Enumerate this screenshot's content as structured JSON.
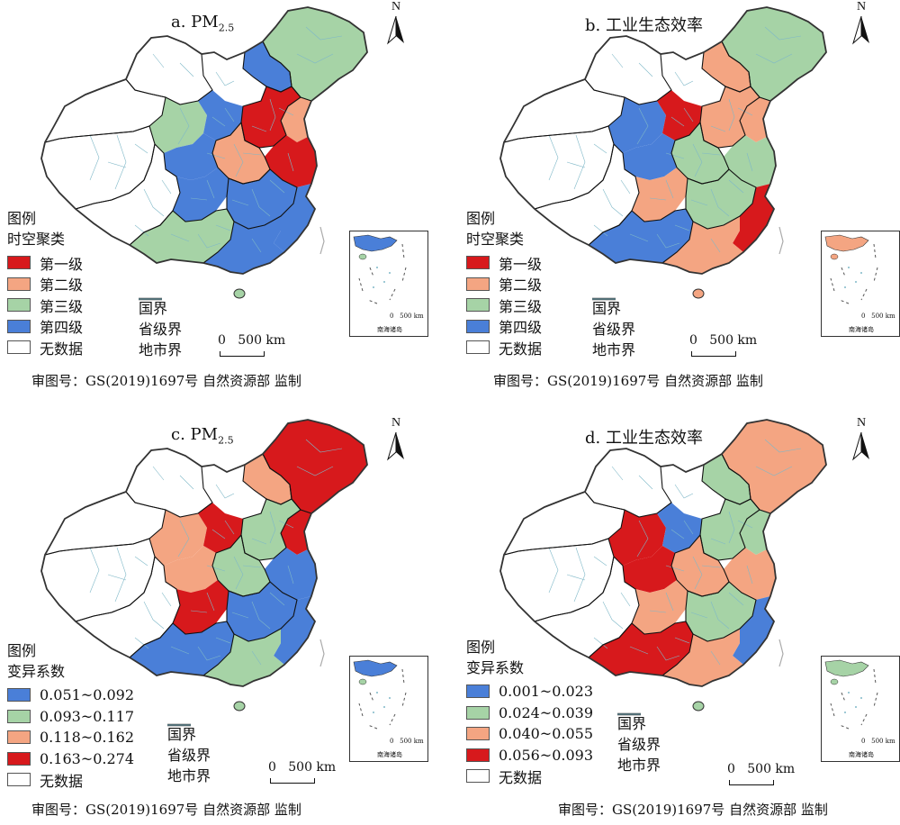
{
  "map_data": {
    "panels": [
      {
        "id": "a",
        "title_main": "a. PM",
        "title_sub": "2.5",
        "legend_title": "图例",
        "legend_subtitle": "时空聚类",
        "classes": [
          {
            "label": "第一级",
            "color": "#d7191c"
          },
          {
            "label": "第二级",
            "color": "#f4a582"
          },
          {
            "label": "第三级",
            "color": "#a6d3a6"
          },
          {
            "label": "第四级",
            "color": "#4a7fd8"
          },
          {
            "label": "无数据",
            "color": "#ffffff"
          }
        ]
      },
      {
        "id": "b",
        "title_main": "b. 工业生态效率",
        "title_sub": "",
        "legend_title": "图例",
        "legend_subtitle": "时空聚类",
        "classes": [
          {
            "label": "第一级",
            "color": "#d7191c"
          },
          {
            "label": "第二级",
            "color": "#f4a582"
          },
          {
            "label": "第三级",
            "color": "#a6d3a6"
          },
          {
            "label": "第四级",
            "color": "#4a7fd8"
          },
          {
            "label": "无数据",
            "color": "#ffffff"
          }
        ]
      },
      {
        "id": "c",
        "title_main": "c. PM",
        "title_sub": "2.5",
        "legend_title": "图例",
        "legend_subtitle": "变异系数",
        "classes": [
          {
            "label": "0.051~0.092",
            "color": "#4a7fd8"
          },
          {
            "label": "0.093~0.117",
            "color": "#a6d3a6"
          },
          {
            "label": "0.118~0.162",
            "color": "#f4a582"
          },
          {
            "label": "0.163~0.274",
            "color": "#d7191c"
          },
          {
            "label": "无数据",
            "color": "#ffffff"
          }
        ]
      },
      {
        "id": "d",
        "title_main": "d. 工业生态效率",
        "title_sub": "",
        "legend_title": "图例",
        "legend_subtitle": "变异系数",
        "classes": [
          {
            "label": "0.001~0.023",
            "color": "#4a7fd8"
          },
          {
            "label": "0.024~0.039",
            "color": "#a6d3a6"
          },
          {
            "label": "0.040~0.055",
            "color": "#f4a582"
          },
          {
            "label": "0.056~0.093",
            "color": "#d7191c"
          },
          {
            "label": "无数据",
            "color": "#ffffff"
          }
        ]
      }
    ],
    "boundary_legend": [
      {
        "label": "国界",
        "color": "#333333"
      },
      {
        "label": "省级界",
        "color": "#000000"
      },
      {
        "label": "地市界",
        "color": "#7fb8c8"
      }
    ],
    "scale_label": "0   500 km",
    "north_label": "N",
    "inset_scale_label": "0   500 km",
    "inset_label": "南海诸岛",
    "approval_text": "审图号：GS(2019)1697号 自然资源部 监制"
  }
}
